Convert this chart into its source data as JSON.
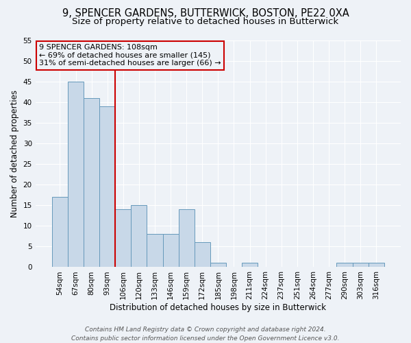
{
  "title_line1": "9, SPENCER GARDENS, BUTTERWICK, BOSTON, PE22 0XA",
  "title_line2": "Size of property relative to detached houses in Butterwick",
  "xlabel": "Distribution of detached houses by size in Butterwick",
  "ylabel": "Number of detached properties",
  "categories": [
    "54sqm",
    "67sqm",
    "80sqm",
    "93sqm",
    "106sqm",
    "120sqm",
    "133sqm",
    "146sqm",
    "159sqm",
    "172sqm",
    "185sqm",
    "198sqm",
    "211sqm",
    "224sqm",
    "237sqm",
    "251sqm",
    "264sqm",
    "277sqm",
    "290sqm",
    "303sqm",
    "316sqm"
  ],
  "values": [
    17,
    45,
    41,
    39,
    14,
    15,
    8,
    8,
    14,
    6,
    1,
    0,
    1,
    0,
    0,
    0,
    0,
    0,
    1,
    1,
    1
  ],
  "bar_color": "#c8d8e8",
  "bar_edgecolor": "#6699bb",
  "vline_index": 4,
  "vline_color": "#cc0000",
  "annotation_line1": "9 SPENCER GARDENS: 108sqm",
  "annotation_line2": "← 69% of detached houses are smaller (145)",
  "annotation_line3": "31% of semi-detached houses are larger (66) →",
  "annotation_box_color": "#cc0000",
  "ylim": [
    0,
    55
  ],
  "yticks": [
    0,
    5,
    10,
    15,
    20,
    25,
    30,
    35,
    40,
    45,
    50,
    55
  ],
  "footnote_line1": "Contains HM Land Registry data © Crown copyright and database right 2024.",
  "footnote_line2": "Contains public sector information licensed under the Open Government Licence v3.0.",
  "bg_color": "#eef2f7",
  "grid_color": "#ffffff",
  "title_fontsize": 10.5,
  "subtitle_fontsize": 9.5,
  "axis_label_fontsize": 8.5,
  "tick_fontsize": 7.5,
  "annotation_fontsize": 8,
  "footnote_fontsize": 6.5
}
